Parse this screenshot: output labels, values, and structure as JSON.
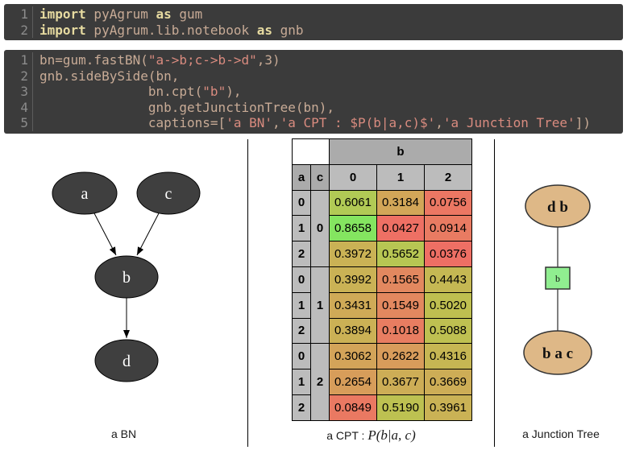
{
  "code_cells": [
    {
      "lines": [
        {
          "no": "1",
          "tokens": [
            [
              "kw",
              "import"
            ],
            [
              "pl",
              " pyAgrum "
            ],
            [
              "kw",
              "as"
            ],
            [
              "pl",
              " gum"
            ]
          ]
        },
        {
          "no": "2",
          "tokens": [
            [
              "kw",
              "import"
            ],
            [
              "pl",
              " pyAgrum.lib.notebook "
            ],
            [
              "kw",
              "as"
            ],
            [
              "pl",
              " gnb"
            ]
          ]
        }
      ]
    },
    {
      "lines": [
        {
          "no": "1",
          "tokens": [
            [
              "pl",
              "bn=gum.fastBN("
            ],
            [
              "str",
              "\"a->b;c->b->d\""
            ],
            [
              "pl",
              ",3)"
            ]
          ]
        },
        {
          "no": "2",
          "tokens": [
            [
              "pl",
              "gnb.sideBySide(bn,"
            ]
          ]
        },
        {
          "no": "3",
          "tokens": [
            [
              "pl",
              "              bn.cpt("
            ],
            [
              "str",
              "\"b\""
            ],
            [
              "pl",
              "),"
            ]
          ]
        },
        {
          "no": "4",
          "tokens": [
            [
              "pl",
              "              gnb.getJunctionTree(bn),"
            ]
          ]
        },
        {
          "no": "5",
          "tokens": [
            [
              "pl",
              "              captions=["
            ],
            [
              "str",
              "'a BN'"
            ],
            [
              "pl",
              ","
            ],
            [
              "str",
              "'a CPT : $P(b|a,c)$'"
            ],
            [
              "pl",
              ","
            ],
            [
              "str",
              "'a Junction Tree'"
            ],
            [
              "pl",
              "])"
            ]
          ]
        }
      ]
    }
  ],
  "output": {
    "bn": {
      "caption": "a BN",
      "nodes": [
        {
          "label": "a"
        },
        {
          "label": "c"
        },
        {
          "label": "b"
        },
        {
          "label": "d"
        }
      ],
      "edges": [
        "a->b",
        "c->b",
        "b->d"
      ]
    },
    "cpt": {
      "caption_prefix": "a CPT : ",
      "caption_math": "P(b|a, c)",
      "child_var": "b",
      "child_labels": [
        "0",
        "1",
        "2"
      ],
      "row_var": "a",
      "row_labels": [
        "0",
        "1",
        "2"
      ],
      "group_var": "c",
      "group_labels": [
        "0",
        "1",
        "2"
      ],
      "groups": [
        {
          "c": "0",
          "rows": [
            {
              "a": "0",
              "values": [
                0.6061,
                0.3184,
                0.0756
              ]
            },
            {
              "a": "1",
              "values": [
                0.8658,
                0.0427,
                0.0914
              ]
            },
            {
              "a": "2",
              "values": [
                0.3972,
                0.5652,
                0.0376
              ]
            }
          ]
        },
        {
          "c": "1",
          "rows": [
            {
              "a": "0",
              "values": [
                0.3992,
                0.1565,
                0.4443
              ]
            },
            {
              "a": "1",
              "values": [
                0.3431,
                0.1549,
                0.502
              ]
            },
            {
              "a": "2",
              "values": [
                0.3894,
                0.1018,
                0.5088
              ]
            }
          ]
        },
        {
          "c": "2",
          "rows": [
            {
              "a": "0",
              "values": [
                0.3062,
                0.2622,
                0.4316
              ]
            },
            {
              "a": "1",
              "values": [
                0.2654,
                0.3677,
                0.3669
              ]
            },
            {
              "a": "2",
              "values": [
                0.0849,
                0.519,
                0.3961
              ]
            }
          ]
        }
      ]
    },
    "junction_tree": {
      "caption": "a Junction Tree",
      "cliques": [
        {
          "label": "d b"
        },
        {
          "label": "b a c"
        }
      ],
      "separators": [
        {
          "label": "b"
        }
      ]
    }
  },
  "colors": {
    "page_background": "#ffffff",
    "code_background": "#3b3b3b",
    "code_keyword": "#e6daa0",
    "code_default": "#c8ab96",
    "code_string": "#d98b7f",
    "code_line_number": "#8c8c8c",
    "code_gutter_line": "#5c5c5c",
    "divider_color": "#000000",
    "bn_node_fill": "#3f3f3f",
    "bn_node_text": "#ffffff",
    "edge_color": "#000000",
    "clique_fill": "#deb887",
    "clique_text": "#111111",
    "separator_fill": "#90ee90",
    "cpt_header_var_bg": "#ababab",
    "cpt_header_label_bg": "#bcbcbc",
    "cpt_low": "#ee7064",
    "cpt_mid": "#cbb254",
    "cpt_high": "#84e660"
  }
}
